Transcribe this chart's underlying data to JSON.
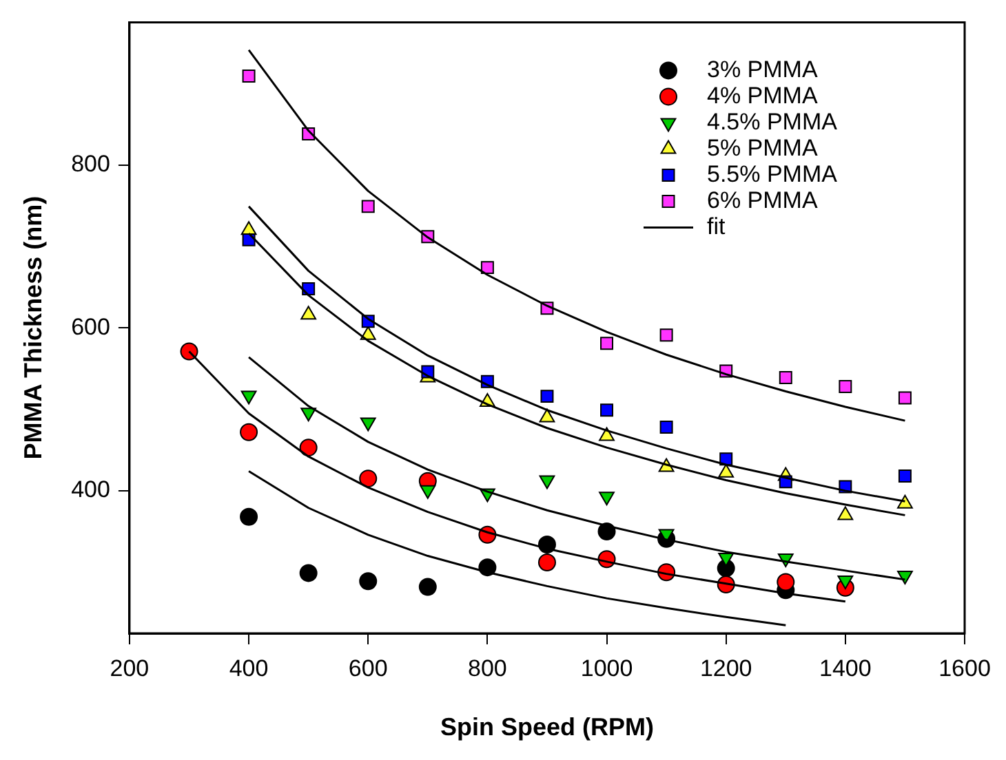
{
  "chart_data": {
    "type": "scatter",
    "xlabel": "Spin Speed (RPM)",
    "ylabel": "PMMA Thickness (nm)",
    "xlim": [
      200,
      1600
    ],
    "xticks": [
      200,
      400,
      600,
      800,
      1000,
      1200,
      1400,
      1600
    ],
    "ylim": [
      225,
      975
    ],
    "yticks": [
      400,
      600,
      800
    ],
    "grid": false,
    "legend": "top right",
    "series": [
      {
        "name": "3% PMMA",
        "color": "#000000",
        "marker": "circle",
        "x": [
          400,
          500,
          600,
          700,
          800,
          900,
          1000,
          1100,
          1200,
          1300
        ],
        "values": [
          368,
          299,
          289,
          282,
          306,
          334,
          350,
          341,
          305,
          278
        ]
      },
      {
        "name": "4% PMMA",
        "color": "#ff0000",
        "marker": "circle",
        "x": [
          300,
          400,
          500,
          600,
          700,
          800,
          900,
          1000,
          1100,
          1200,
          1300,
          1400
        ],
        "values": [
          571,
          472,
          453,
          415,
          412,
          346,
          312,
          316,
          300,
          285,
          288,
          281
        ]
      },
      {
        "name": "4.5% PMMA",
        "color": "#00cc00",
        "marker": "triangle-down",
        "x": [
          400,
          500,
          600,
          700,
          800,
          900,
          1000,
          1100,
          1200,
          1300,
          1400,
          1500
        ],
        "values": [
          517,
          496,
          484,
          401,
          397,
          413,
          393,
          347,
          318,
          317,
          290,
          296
        ]
      },
      {
        "name": "5% PMMA",
        "color": "#ffff33",
        "marker": "triangle",
        "x": [
          400,
          500,
          600,
          700,
          800,
          900,
          1000,
          1100,
          1200,
          1300,
          1400,
          1500
        ],
        "values": [
          720,
          616,
          591,
          539,
          509,
          490,
          467,
          429,
          422,
          418,
          370,
          384
        ]
      },
      {
        "name": "5.5% PMMA",
        "color": "#0000ff",
        "marker": "square",
        "x": [
          400,
          500,
          600,
          700,
          800,
          900,
          1000,
          1100,
          1200,
          1300,
          1400,
          1500
        ],
        "values": [
          708,
          648,
          608,
          546,
          534,
          516,
          499,
          478,
          439,
          411,
          405,
          418
        ]
      },
      {
        "name": "6% PMMA",
        "color": "#ff33ff",
        "marker": "square",
        "x": [
          400,
          500,
          600,
          700,
          800,
          900,
          1000,
          1100,
          1200,
          1300,
          1400,
          1500
        ],
        "values": [
          909,
          838,
          749,
          712,
          674,
          624,
          581,
          591,
          547,
          539,
          528,
          514
        ]
      },
      {
        "name": "fit",
        "type": "line",
        "color": "#000000",
        "marker": "none",
        "x": [
          400,
          500,
          600,
          700,
          800,
          900,
          1000,
          1100,
          1200,
          1300,
          1400,
          1500
        ],
        "values": [
          941,
          842,
          768,
          711,
          665,
          627,
          595,
          567,
          543,
          522,
          503,
          486
        ]
      },
      {
        "type": "line",
        "color": "#000000",
        "marker": "none",
        "x": [
          400,
          500,
          600,
          700,
          800,
          900,
          1000,
          1100,
          1200,
          1300,
          1400,
          1500
        ],
        "values": [
          749,
          670,
          611,
          566,
          530,
          499,
          474,
          452,
          432,
          416,
          400,
          387
        ]
      },
      {
        "type": "line",
        "color": "#000000",
        "marker": "none",
        "x": [
          400,
          500,
          600,
          700,
          800,
          900,
          1000,
          1100,
          1200,
          1300,
          1400,
          1500
        ],
        "values": [
          716,
          640,
          584,
          541,
          506,
          477,
          453,
          432,
          413,
          397,
          383,
          370
        ]
      },
      {
        "type": "line",
        "color": "#000000",
        "marker": "none",
        "x": [
          400,
          500,
          600,
          700,
          800,
          900,
          1000,
          1100,
          1200,
          1300,
          1400,
          1500
        ],
        "values": [
          564,
          504,
          460,
          426,
          399,
          376,
          357,
          340,
          325,
          313,
          302,
          291
        ]
      },
      {
        "type": "line",
        "color": "#000000",
        "marker": "none",
        "x": [
          300,
          400,
          500,
          600,
          700,
          800,
          900,
          1000,
          1100,
          1200,
          1300,
          1400
        ],
        "values": [
          571,
          495,
          442,
          404,
          374,
          349,
          329,
          313,
          298,
          286,
          274,
          264
        ]
      },
      {
        "type": "line",
        "color": "#000000",
        "marker": "none",
        "x": [
          400,
          500,
          600,
          700,
          800,
          900,
          1000,
          1100,
          1200,
          1300
        ],
        "values": [
          424,
          379,
          346,
          320,
          300,
          283,
          268,
          256,
          245,
          235
        ]
      }
    ]
  }
}
